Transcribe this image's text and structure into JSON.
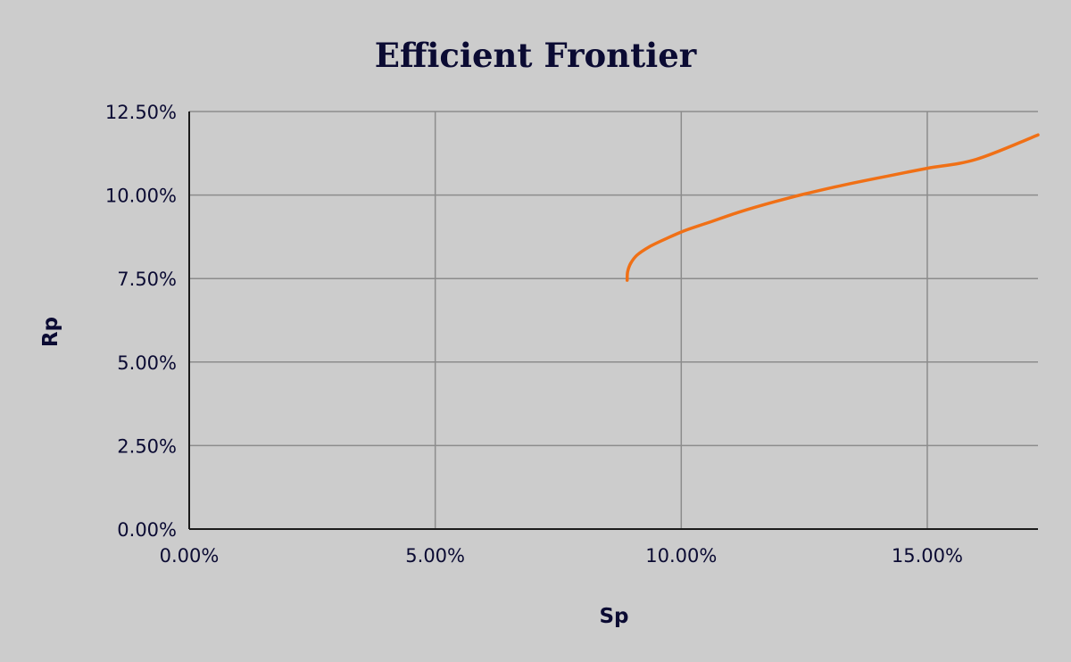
{
  "chart_data": {
    "type": "line",
    "title": "Efficient Frontier",
    "xlabel": "Sp",
    "ylabel": "Rp",
    "xlim": [
      0,
      0.1725
    ],
    "ylim": [
      0,
      0.125
    ],
    "x_ticks": [
      0,
      0.05,
      0.1,
      0.15
    ],
    "x_tick_labels": [
      "0.00%",
      "5.00%",
      "10.00%",
      "15.00%"
    ],
    "y_ticks": [
      0,
      0.025,
      0.05,
      0.075,
      0.1,
      0.125
    ],
    "y_tick_labels": [
      "0.00%",
      "2.50%",
      "5.00%",
      "7.50%",
      "10.00%",
      "12.50%"
    ],
    "grid": true,
    "legend": "none",
    "series": [
      {
        "color": "#f07016",
        "points": [
          [
            0.089,
            0.0745
          ],
          [
            0.0891,
            0.077
          ],
          [
            0.0897,
            0.0795
          ],
          [
            0.091,
            0.082
          ],
          [
            0.0935,
            0.0845
          ],
          [
            0.097,
            0.087
          ],
          [
            0.101,
            0.0895
          ],
          [
            0.106,
            0.092
          ],
          [
            0.112,
            0.095
          ],
          [
            0.119,
            0.098
          ],
          [
            0.125,
            0.1003
          ],
          [
            0.133,
            0.103
          ],
          [
            0.142,
            0.1057
          ],
          [
            0.15,
            0.108
          ],
          [
            0.16,
            0.1107
          ],
          [
            0.1725,
            0.118
          ]
        ]
      }
    ]
  }
}
